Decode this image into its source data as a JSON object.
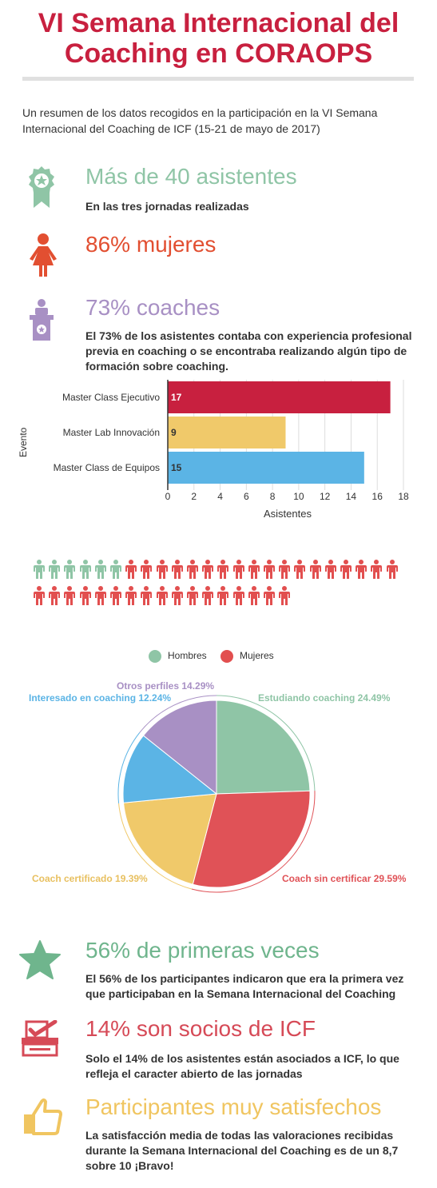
{
  "title": {
    "line1": "VI Semana Internacional del",
    "line2": "Coaching en CORAOPS"
  },
  "intro": "Un resumen de los datos recogidos en la participación en la VI Semana Internacional del Coaching de ICF (15-21 de mayo de 2017)",
  "stats": {
    "asistentes": {
      "head": "Más de 40 asistentes",
      "text": "En las tres jornadas realizadas",
      "icon": "award-ribbon-icon",
      "color": "#8fc5a6"
    },
    "mujeres": {
      "head": "86% mujeres",
      "icon": "woman-icon",
      "color": "#e24f31"
    },
    "coaches": {
      "head": "73% coaches",
      "text": "El 73% de los asistentes contaba con experiencia profesional previa en coaching o se encontraba realizando algún tipo de formación sobre coaching.",
      "icon": "podium-speaker-icon",
      "color": "#a890c4"
    },
    "primeras": {
      "head": "56% de primeras veces",
      "text": "El 56% de los participantes indicaron que era la primera vez que participaban en la Semana Internacional del Coaching",
      "icon": "star-icon",
      "color": "#6fb58d"
    },
    "socios": {
      "head": "14% son socios de ICF",
      "text": "Solo el 14% de los asistentes están asociados a ICF, lo que refleja el caracter abierto de las jornadas",
      "icon": "ballot-box-icon",
      "color": "#d64a57"
    },
    "satisfechos": {
      "head": "Participantes muy satisfechos",
      "text": "La satisfacción media de todas las valoraciones recibidas durante la Semana Internacional del Coaching es de un 8,7 sobre 10 ¡Bravo!",
      "icon": "thumbs-up-icon",
      "color": "#f0c560"
    }
  },
  "chart_data": [
    {
      "type": "bar",
      "orientation": "horizontal",
      "categories": [
        "Master Class Ejecutivo",
        "Master Lab Innovación",
        "Master Class de Equipos"
      ],
      "values": [
        17,
        9,
        15
      ],
      "colors": [
        "#c8203f",
        "#f0c96a",
        "#5bb4e5"
      ],
      "xlabel": "Asistentes",
      "ylabel": "Evento",
      "xlim": [
        0,
        18
      ],
      "ticks": [
        "0",
        "2",
        "4",
        "6",
        "8",
        "10",
        "12",
        "14",
        "16",
        "18"
      ],
      "grid": true
    },
    {
      "type": "pictogram",
      "series": [
        {
          "name": "Hombres",
          "count": 6,
          "color": "#8fc5a6"
        },
        {
          "name": "Mujeres",
          "count": 35,
          "color": "#e24f4f"
        }
      ],
      "legend": "top-center"
    },
    {
      "type": "pie",
      "labels": [
        "Estudiando coaching 24.49%",
        "Coach sin certificar 29.59%",
        "Coach certificado 19.39%",
        "Interesado en coaching 12.24%",
        "Otros perfiles 14.29%"
      ],
      "values": [
        24.49,
        29.59,
        19.39,
        12.24,
        14.29
      ],
      "colors": [
        "#8fc5a6",
        "#e05257",
        "#f0c96a",
        "#5bb4e5",
        "#a890c4"
      ],
      "label_colors": [
        "#8fc5a6",
        "#e05257",
        "#e8c060",
        "#5bb4e5",
        "#a890c4"
      ]
    }
  ]
}
